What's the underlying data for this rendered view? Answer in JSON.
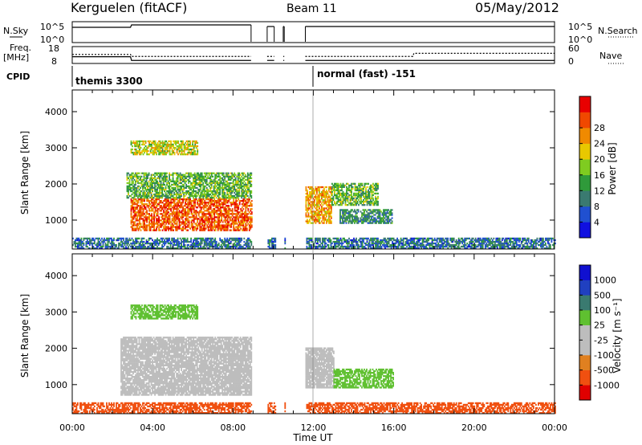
{
  "header": {
    "station": "Kerguelen (fitACF)",
    "beam": "Beam 11",
    "date": "05/May/2012"
  },
  "noise_panel": {
    "left_label": "N.Sky",
    "right_label": "N.Search",
    "left_ticks": [
      "10^5",
      "10^0"
    ],
    "right_ticks": [
      "10^5",
      "10^0"
    ]
  },
  "freq_panel": {
    "left_label_1": "Freq.",
    "left_label_2": "[MHz]",
    "left_ticks": [
      "18",
      "8"
    ],
    "right_label": "Nave",
    "right_ticks": [
      "60",
      "0"
    ]
  },
  "cpid": {
    "label": "CPID",
    "first_mode": "themis 3300",
    "second_mode": "normal (fast) -151",
    "switch_time_hours": 12.0
  },
  "colors": {
    "power_scale": [
      "#1010e0",
      "#2050d0",
      "#3a7a70",
      "#2f9a3a",
      "#7fcc20",
      "#e8c800",
      "#f08a00",
      "#f04800",
      "#e80000"
    ],
    "velocity_scale": [
      "#1010d0",
      "#2040c0",
      "#3a7a70",
      "#5fc030",
      "#bdbdbd",
      "#bdbdbd",
      "#e08020",
      "#f05010",
      "#e00000"
    ]
  },
  "chart_data": [
    {
      "type": "line",
      "title": "",
      "xlabel": "",
      "ylabel": "N.Sky",
      "x_range_hours": [
        0,
        24
      ],
      "description_series": [
        {
          "name": "N.Sky",
          "style": "solid"
        },
        {
          "name": "N.Search",
          "style": "dotted"
        }
      ],
      "data_gaps_hours": [
        [
          8.9,
          9.7
        ],
        [
          10.1,
          10.5
        ],
        [
          10.6,
          11.6
        ]
      ]
    },
    {
      "type": "line",
      "ylabel": "Freq. [MHz]",
      "x_range_hours": [
        0,
        24
      ],
      "series": [
        {
          "name": "Freq.",
          "x": [
            0,
            2.9,
            2.9,
            24
          ],
          "y": [
            12,
            12,
            9.8,
            9.8
          ]
        },
        {
          "name": "Nave",
          "x": [
            0,
            2.9,
            2.9,
            17.0,
            17.0,
            24
          ],
          "y": [
            32,
            32,
            25,
            25,
            36,
            36
          ]
        }
      ]
    },
    {
      "type": "heatmap",
      "title": "",
      "xlabel": "Time UT",
      "ylabel": "Slant Range [km]",
      "ylim": [
        200,
        4600
      ],
      "y_ticks": [
        "1000",
        "2000",
        "3000",
        "4000"
      ],
      "x_ticks": [
        "00:00",
        "04:00",
        "08:00",
        "12:00",
        "16:00",
        "20:00",
        "00:00"
      ],
      "colorbar_label": "Power [dB]",
      "colorbar_ticks": [
        "4",
        "8",
        "12",
        "16",
        "20",
        "24",
        "28"
      ],
      "colorbar_range": [
        0,
        32
      ],
      "regions": [
        {
          "x": [
            2.9,
            9.0
          ],
          "y": [
            700,
            1600
          ],
          "value": 26
        },
        {
          "x": [
            2.7,
            9.0
          ],
          "y": [
            1600,
            2300
          ],
          "value": 14
        },
        {
          "x": [
            2.9,
            6.2
          ],
          "y": [
            2800,
            3200
          ],
          "value": 18
        },
        {
          "x": [
            11.3,
            12.9
          ],
          "y": [
            900,
            1900
          ],
          "value": 22
        },
        {
          "x": [
            12.9,
            15.2
          ],
          "y": [
            1400,
            2000
          ],
          "value": 14
        },
        {
          "x": [
            13.3,
            15.9
          ],
          "y": [
            900,
            1300
          ],
          "value": 10
        },
        {
          "x": [
            0,
            24
          ],
          "y": [
            200,
            500
          ],
          "value": 8
        }
      ]
    },
    {
      "type": "heatmap",
      "title": "",
      "xlabel": "Time UT",
      "ylabel": "Slant Range [km]",
      "ylim": [
        200,
        4600
      ],
      "y_ticks": [
        "1000",
        "2000",
        "3000",
        "4000"
      ],
      "x_ticks": [
        "00:00",
        "04:00",
        "08:00",
        "12:00",
        "16:00",
        "20:00",
        "00:00"
      ],
      "colorbar_label": "Velocity [m s⁻¹]",
      "colorbar_ticks": [
        "1000",
        "500",
        "100",
        "25",
        "-25",
        "-100",
        "-500",
        "-1000"
      ],
      "regions": [
        {
          "x": [
            2.4,
            9.0
          ],
          "y": [
            700,
            2300
          ],
          "value": 0
        },
        {
          "x": [
            2.9,
            6.2
          ],
          "y": [
            2800,
            3200
          ],
          "value": 120
        },
        {
          "x": [
            11.3,
            13.0
          ],
          "y": [
            900,
            2000
          ],
          "value": 0
        },
        {
          "x": [
            13.0,
            16.0
          ],
          "y": [
            900,
            1400
          ],
          "value": 80
        },
        {
          "x": [
            0,
            24
          ],
          "y": [
            200,
            500
          ],
          "value": -150
        }
      ]
    }
  ]
}
